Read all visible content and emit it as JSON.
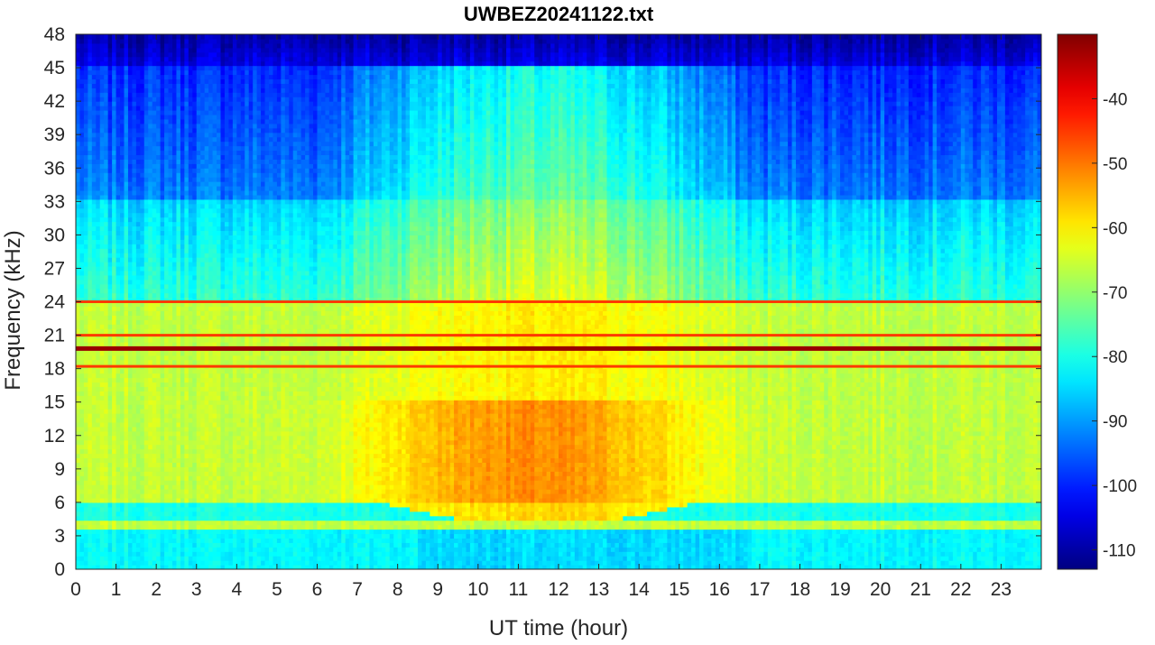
{
  "chart_data": {
    "type": "heatmap",
    "title": "UWBEZ20241122.txt",
    "xlabel": "UT time (hour)",
    "ylabel": "Frequency (kHz)",
    "xlim": [
      0,
      24
    ],
    "ylim": [
      0,
      48
    ],
    "x_ticks": [
      "0",
      "1",
      "2",
      "3",
      "4",
      "5",
      "6",
      "7",
      "8",
      "9",
      "10",
      "11",
      "12",
      "13",
      "14",
      "15",
      "16",
      "17",
      "18",
      "19",
      "20",
      "21",
      "22",
      "23"
    ],
    "y_ticks": [
      "0",
      "3",
      "6",
      "9",
      "12",
      "15",
      "18",
      "21",
      "24",
      "27",
      "30",
      "33",
      "36",
      "39",
      "42",
      "45",
      "48"
    ],
    "colorbar": {
      "colormap": "jet",
      "range": [
        -113,
        -30
      ],
      "ticks": [
        "-40",
        "-50",
        "-60",
        "-70",
        "-80",
        "-90",
        "-100",
        "-110"
      ]
    },
    "features": {
      "strong_line_khz": 19.8,
      "secondary_lines_khz": [
        18.2,
        21.0,
        24.0
      ],
      "low_band_khz": [
        3.5,
        4.3
      ],
      "daytime_enhancement_hours": [
        6,
        17
      ],
      "peak_enhancement_hour": 11
    }
  }
}
